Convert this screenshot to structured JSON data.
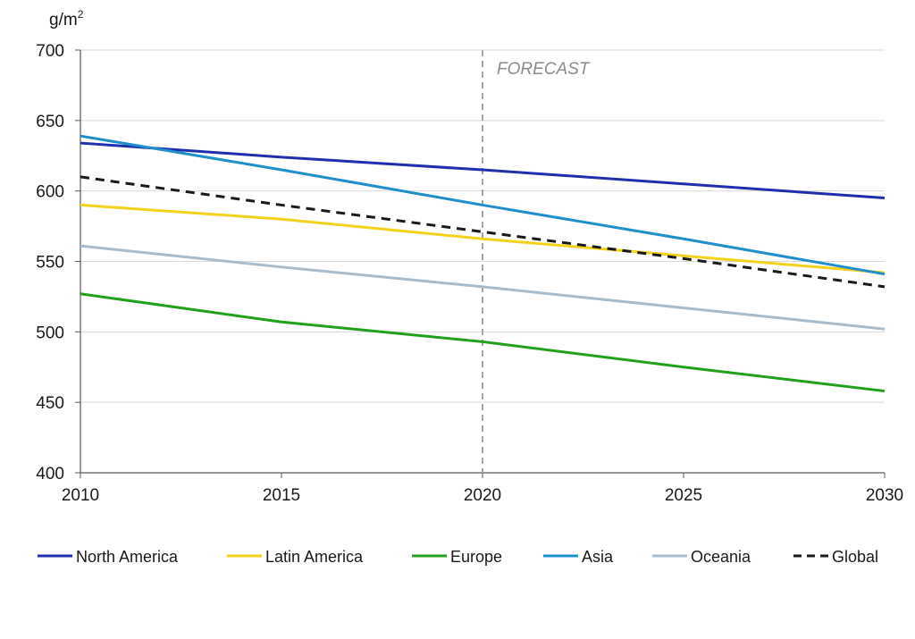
{
  "chart_data": {
    "type": "line",
    "ylabel": "g/m",
    "ylabel_superscript": "2",
    "xlabel": "",
    "x": [
      2010,
      2015,
      2020,
      2025,
      2030
    ],
    "xlim": [
      2010,
      2030
    ],
    "ylim": [
      400,
      700
    ],
    "yticks": [
      400,
      450,
      500,
      550,
      600,
      650,
      700
    ],
    "grid": "horizontal",
    "legend": "bottom",
    "annotation": {
      "text": "FORECAST",
      "x": 2020,
      "color": "#a6a6a6"
    },
    "series": [
      {
        "name": "North America",
        "values": [
          634,
          624,
          615,
          605,
          595
        ],
        "color": "#1f2fae",
        "dash": false
      },
      {
        "name": "Latin America",
        "values": [
          590,
          580,
          566,
          554,
          542
        ],
        "color": "#f2d21d",
        "dash": false
      },
      {
        "name": "Europe",
        "values": [
          527,
          507,
          493,
          475,
          458
        ],
        "color": "#21a11b",
        "dash": false
      },
      {
        "name": "Asia",
        "values": [
          639,
          615,
          590,
          566,
          541
        ],
        "color": "#1f8fcc",
        "dash": false
      },
      {
        "name": "Oceania",
        "values": [
          561,
          546,
          532,
          517,
          502
        ],
        "color": "#a9bccb",
        "dash": false
      },
      {
        "name": "Global",
        "values": [
          610,
          590,
          571,
          552,
          532
        ],
        "color": "#1a1a1a",
        "dash": true
      }
    ]
  }
}
